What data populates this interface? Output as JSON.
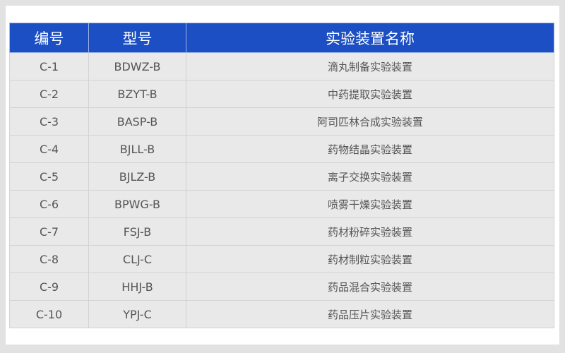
{
  "table": {
    "headers": [
      "编号",
      "型号",
      "实验装置名称"
    ],
    "rows": [
      [
        "C-1",
        "BDWZ-B",
        "滴丸制备实验装置"
      ],
      [
        "C-2",
        "BZYT-B",
        "中药提取实验装置"
      ],
      [
        "C-3",
        "BASP-B",
        "阿司匹林合成实验装置"
      ],
      [
        "C-4",
        "BJLL-B",
        "药物结晶实验装置"
      ],
      [
        "C-5",
        "BJLZ-B",
        "离子交换实验装置"
      ],
      [
        "C-6",
        "BPWG-B",
        "喷雾干燥实验装置"
      ],
      [
        "C-7",
        "FSJ-B",
        "药材粉碎实验装置"
      ],
      [
        "C-8",
        "CLJ-C",
        "药材制粒实验装置"
      ],
      [
        "C-9",
        "HHJ-B",
        "药品混合实验装置"
      ],
      [
        "C-10",
        "YPJ-C",
        "药品压片实验装置"
      ]
    ]
  },
  "colors": {
    "header_bg": "#1c4fc3",
    "row_bg": "#e9e9e9",
    "page_bg": "#e2e2e2"
  }
}
